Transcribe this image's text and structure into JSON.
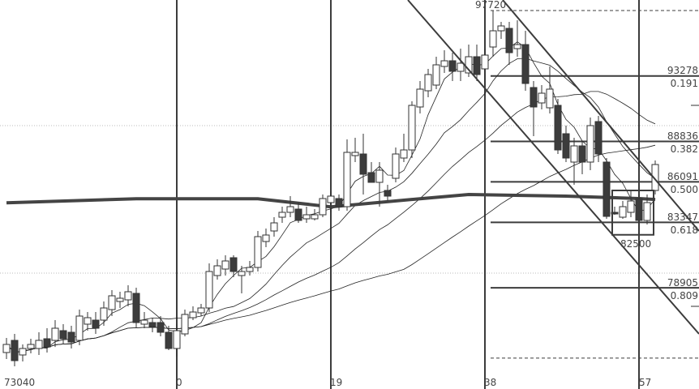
{
  "chart_data": {
    "type": "candlestick",
    "title": "",
    "x_tick_labels": [
      {
        "index": -21,
        "label": "73040"
      },
      {
        "index": 0,
        "label": "0"
      },
      {
        "index": 19,
        "label": "19"
      },
      {
        "index": 38,
        "label": "38"
      },
      {
        "index": 57,
        "label": "57"
      }
    ],
    "first_index": -21,
    "candles_ohlc": [
      [
        74510,
        75060,
        75500,
        74070
      ],
      [
        75335,
        73960,
        75775,
        73575
      ],
      [
        74345,
        74785,
        75060,
        73905
      ],
      [
        74785,
        75060,
        75445,
        74455
      ],
      [
        74785,
        75335,
        75885,
        74345
      ],
      [
        75445,
        74885,
        76160,
        74510
      ],
      [
        75335,
        76160,
        76710,
        74885
      ],
      [
        75995,
        75445,
        76435,
        75060
      ],
      [
        75885,
        75225,
        76325,
        74785
      ],
      [
        75335,
        76985,
        77425,
        75005
      ],
      [
        76435,
        76875,
        77260,
        75995
      ],
      [
        76710,
        76160,
        77260,
        75775
      ],
      [
        76710,
        77535,
        77975,
        76325
      ],
      [
        77425,
        78360,
        78745,
        76985
      ],
      [
        77975,
        78195,
        78635,
        77535
      ],
      [
        78085,
        78635,
        79075,
        77645
      ],
      [
        78525,
        76545,
        78910,
        76160
      ],
      [
        76435,
        76710,
        77260,
        76160
      ],
      [
        76545,
        76270,
        76875,
        75885
      ],
      [
        76545,
        75885,
        76985,
        75610
      ],
      [
        75885,
        74785,
        76325,
        74675
      ],
      [
        74785,
        75995,
        76435,
        74235
      ],
      [
        75775,
        77095,
        77425,
        75610
      ],
      [
        76875,
        77260,
        77645,
        76710
      ],
      [
        77205,
        77535,
        77810,
        76985
      ],
      [
        77535,
        80010,
        80560,
        77260
      ],
      [
        79735,
        80395,
        80835,
        79460
      ],
      [
        80175,
        80725,
        81110,
        79735
      ],
      [
        80945,
        80010,
        81110,
        79625
      ],
      [
        79735,
        80010,
        80395,
        78525
      ],
      [
        80010,
        80285,
        80725,
        79735
      ],
      [
        80285,
        82375,
        82760,
        80010
      ],
      [
        82045,
        82485,
        82925,
        81660
      ],
      [
        82760,
        83310,
        83695,
        82375
      ],
      [
        83695,
        84025,
        84410,
        83310
      ],
      [
        84025,
        84410,
        85125,
        83695
      ],
      [
        84245,
        83475,
        84685,
        83310
      ],
      [
        83585,
        83860,
        84410,
        83310
      ],
      [
        83585,
        83860,
        84245,
        83475
      ],
      [
        83860,
        84960,
        85235,
        83695
      ],
      [
        84685,
        85125,
        85455,
        84025
      ],
      [
        84960,
        84410,
        85235,
        84135
      ],
      [
        84410,
        88095,
        88975,
        84135
      ],
      [
        87875,
        88095,
        89085,
        87435
      ],
      [
        87985,
        86610,
        89360,
        85235
      ],
      [
        86720,
        86060,
        87435,
        86395
      ],
      [
        86060,
        86885,
        87435,
        84410
      ],
      [
        85510,
        85125,
        85895,
        84795
      ],
      [
        86335,
        87985,
        88425,
        86060
      ],
      [
        87710,
        88260,
        89360,
        87435
      ],
      [
        88260,
        91285,
        91560,
        87710
      ],
      [
        91175,
        92385,
        92935,
        90735
      ],
      [
        92275,
        93375,
        93760,
        91835
      ],
      [
        92660,
        94035,
        94585,
        92385
      ],
      [
        93925,
        94310,
        95025,
        93485
      ],
      [
        94310,
        93595,
        94860,
        92935
      ],
      [
        93595,
        94145,
        95135,
        92935
      ],
      [
        93485,
        94585,
        95410,
        93210
      ],
      [
        94585,
        93375,
        95410,
        92935
      ],
      [
        93760,
        94695,
        95135,
        92660
      ],
      [
        95245,
        96345,
        97720,
        94585
      ],
      [
        96345,
        96675,
        96950,
        95795
      ],
      [
        96510,
        94860,
        96950,
        94035
      ],
      [
        95135,
        95410,
        97060,
        94585
      ],
      [
        95410,
        92770,
        96345,
        92275
      ],
      [
        92495,
        91175,
        92935,
        89195
      ],
      [
        91450,
        92110,
        92660,
        91010
      ],
      [
        91120,
        92385,
        93925,
        90735
      ],
      [
        91285,
        88260,
        91725,
        87985
      ],
      [
        89360,
        87710,
        89910,
        87435
      ],
      [
        87435,
        88535,
        89085,
        85895
      ],
      [
        88535,
        87435,
        88810,
        86610
      ],
      [
        87435,
        89910,
        90460,
        86885
      ],
      [
        90185,
        87985,
        90570,
        87435
      ],
      [
        87435,
        83750,
        87710,
        83585
      ],
      [
        84025,
        83915,
        84410,
        83860
      ],
      [
        83695,
        84410,
        84795,
        83585
      ],
      [
        84025,
        84795,
        85510,
        83695
      ],
      [
        84960,
        83475,
        85235,
        82500
      ],
      [
        83475,
        84685,
        85235,
        83200
      ],
      [
        85510,
        87270,
        87545,
        85235
      ]
    ],
    "moving_average_periods": [
      5,
      13,
      25,
      50
    ],
    "long_moving_average": [
      [
        -21,
        84675
      ],
      [
        -5,
        84950
      ],
      [
        10,
        84950
      ],
      [
        19,
        84400
      ],
      [
        30,
        84950
      ],
      [
        36,
        85235
      ],
      [
        48,
        85125
      ],
      [
        57,
        84960
      ],
      [
        59,
        84900
      ]
    ],
    "channel_lines": [
      {
        "from": [
          28.5,
          98435
        ],
        "to": [
          64.4,
          75775
        ]
      },
      {
        "from": [
          40.2,
          98435
        ],
        "to": [
          64.4,
          82760
        ]
      }
    ],
    "fibonacci": {
      "high": "97720",
      "low_box_label": "82500",
      "levels": [
        {
          "price": "93278",
          "ratio": "0.191"
        },
        {
          "price": "88836",
          "ratio": "0.382"
        },
        {
          "price": "86091",
          "ratio": "0.500"
        },
        {
          "price": "83347",
          "ratio": "0.618"
        },
        {
          "price": "78905",
          "ratio": "0.809"
        }
      ],
      "base_price": 74463
    },
    "low_box": {
      "from_index": 53.7,
      "to_index": 58.8,
      "top": 85510,
      "bottom": 82500
    },
    "grid_prices": [
      89910,
      79900
    ],
    "colors": {
      "up_fill": "#ffffff",
      "down_fill": "#3c3c3c",
      "line": "#3c3c3c",
      "grid": "#bbbbbb"
    }
  }
}
